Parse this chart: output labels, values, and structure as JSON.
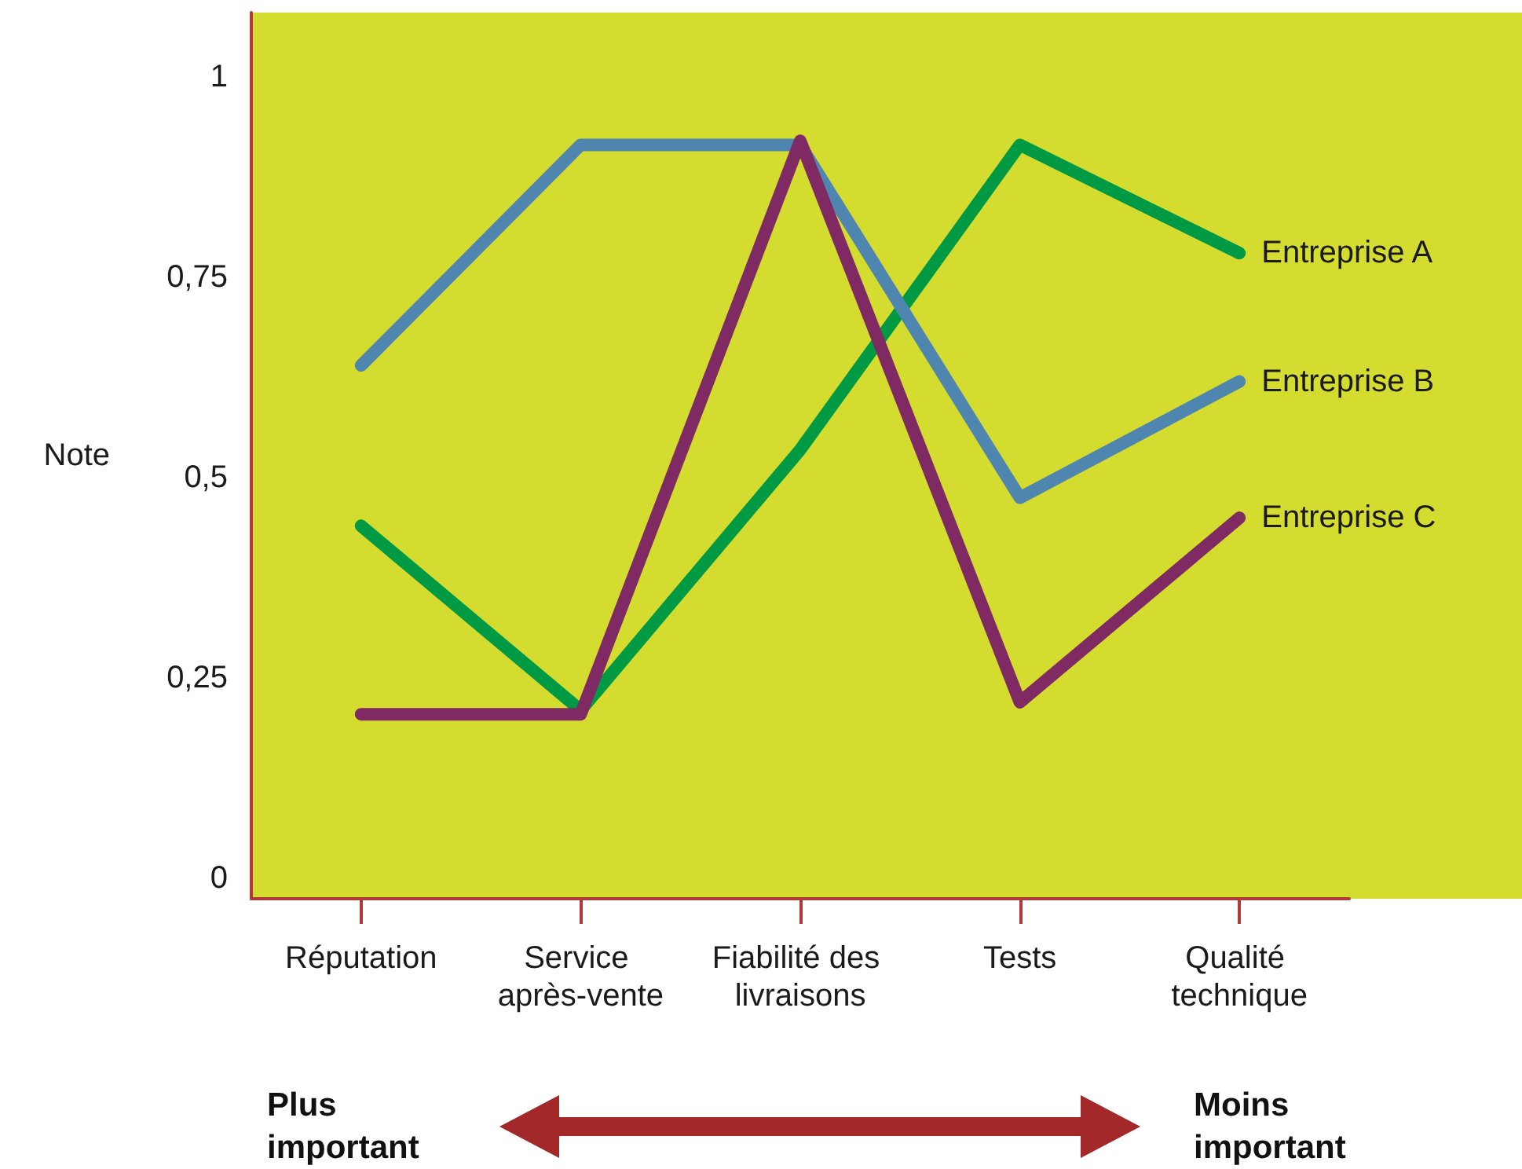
{
  "chart_data": {
    "type": "line",
    "ylabel": "Note",
    "categories": [
      "Réputation",
      "Service après-vente",
      "Fiabilité des livraisons",
      "Tests",
      "Qualité technique"
    ],
    "series": [
      {
        "name": "Entreprise A",
        "color": "#009a44",
        "values": [
          0.44,
          0.21,
          0.535,
          0.915,
          0.78
        ]
      },
      {
        "name": "Entreprise B",
        "color": "#4f86b0",
        "values": [
          0.64,
          0.915,
          0.915,
          0.475,
          0.62
        ]
      },
      {
        "name": "Entreprise C",
        "color": "#7f2a63",
        "values": [
          0.205,
          0.205,
          0.92,
          0.22,
          0.45
        ]
      }
    ],
    "ylim": [
      -0.025,
      1.08
    ],
    "yticks": [
      0,
      {
        "value": 0.25,
        "label": "0,25"
      },
      {
        "value": 0.5,
        "label": "0,5"
      },
      {
        "value": 0.75,
        "label": "0,75"
      },
      1
    ],
    "annotations": [
      "Plus important",
      "Moins important"
    ],
    "grid": false,
    "legend": false,
    "marker": "none",
    "line_style": "solid"
  }
}
